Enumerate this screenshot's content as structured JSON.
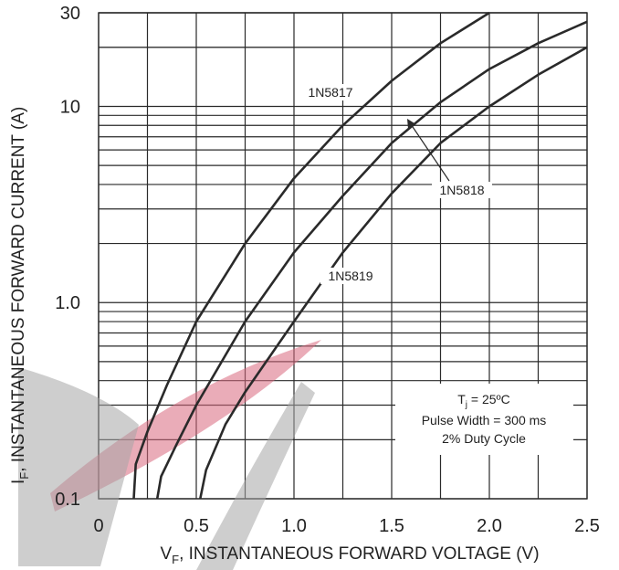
{
  "chart_data": {
    "type": "line",
    "xlabel": "V",
    "xlabel_sub": "F",
    "xlabel_rest": ", INSTANTANEOUS FORWARD VOLTAGE (V)",
    "ylabel": "I",
    "ylabel_sub": "F",
    "ylabel_rest": ", INSTANTANEOUS FORWARD CURRENT (A)",
    "xlim": [
      0,
      2.5
    ],
    "ylim": [
      0.1,
      30
    ],
    "y_scale": "log",
    "grid": true,
    "x_ticks": [
      0,
      0.5,
      1.0,
      1.5,
      2.0,
      2.5
    ],
    "x_tick_labels": [
      "0",
      "0.5",
      "1.0",
      "1.5",
      "2.0",
      "2.5"
    ],
    "y_ticks": [
      0.1,
      1.0,
      10,
      30
    ],
    "y_tick_labels": [
      "0.1",
      "1.0",
      "10",
      "30"
    ],
    "series": [
      {
        "name": "1N5817",
        "x": [
          0.18,
          0.19,
          0.25,
          0.35,
          0.5,
          0.75,
          1.0,
          1.25,
          1.5,
          1.75,
          2.0
        ],
        "y": [
          0.1,
          0.15,
          0.22,
          0.38,
          0.8,
          2.0,
          4.3,
          8.0,
          13.5,
          21.0,
          30.0
        ]
      },
      {
        "name": "1N5818",
        "x": [
          0.3,
          0.32,
          0.4,
          0.5,
          0.75,
          1.0,
          1.25,
          1.5,
          1.75,
          2.0,
          2.25,
          2.5
        ],
        "y": [
          0.1,
          0.13,
          0.19,
          0.3,
          0.8,
          1.8,
          3.5,
          6.5,
          10.5,
          15.5,
          21.0,
          27.0
        ]
      },
      {
        "name": "1N5819",
        "x": [
          0.52,
          0.55,
          0.65,
          0.75,
          1.0,
          1.25,
          1.5,
          1.75,
          2.0,
          2.25,
          2.5
        ],
        "y": [
          0.1,
          0.14,
          0.24,
          0.35,
          0.8,
          1.8,
          3.6,
          6.5,
          10.0,
          14.5,
          20.0
        ]
      }
    ],
    "annotation": {
      "tj_prefix": "T",
      "tj_sub": "j",
      "tj_rest": " = 25ºC",
      "line2": "Pulse Width = 300 ms",
      "line3": "2% Duty Cycle"
    },
    "colors": {
      "line": "#2a2a2a",
      "grid": "#2a2a2a",
      "watermark_red": "#d9677e",
      "watermark_gray": "#a6a6a6"
    }
  }
}
